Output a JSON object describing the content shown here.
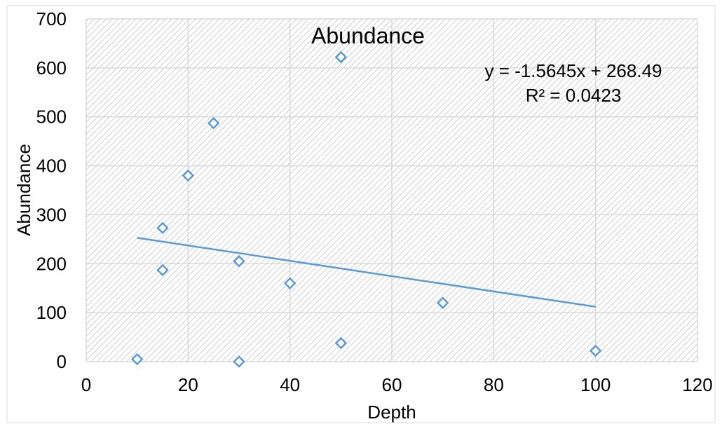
{
  "chart_data": {
    "type": "scatter",
    "title": "Abundance",
    "xlabel": "Depth",
    "ylabel": "Abundance",
    "xlim": [
      0,
      120
    ],
    "ylim": [
      0,
      700
    ],
    "x_ticks": [
      "0",
      "20",
      "40",
      "60",
      "80",
      "100",
      "120"
    ],
    "y_ticks": [
      "0",
      "100",
      "200",
      "300",
      "400",
      "500",
      "600",
      "700"
    ],
    "grid": true,
    "marker": "diamond-open",
    "colors": {
      "series": "#5b9bd5",
      "grid": "#d9d9d9",
      "hatch": "#c8c8c8"
    },
    "series": [
      {
        "x": [
          10,
          15,
          15,
          20,
          25,
          30,
          30,
          40,
          50,
          50,
          70,
          100
        ],
        "y": [
          5,
          273,
          187,
          380,
          487,
          205,
          0,
          160,
          622,
          38,
          120,
          22
        ]
      }
    ],
    "trendline": {
      "type": "linear",
      "slope": -1.5645,
      "intercept": 268.49,
      "x_range": [
        10,
        100
      ],
      "equation": "y = -1.5645x + 268.49",
      "r_squared": "R² = 0.0423"
    }
  }
}
